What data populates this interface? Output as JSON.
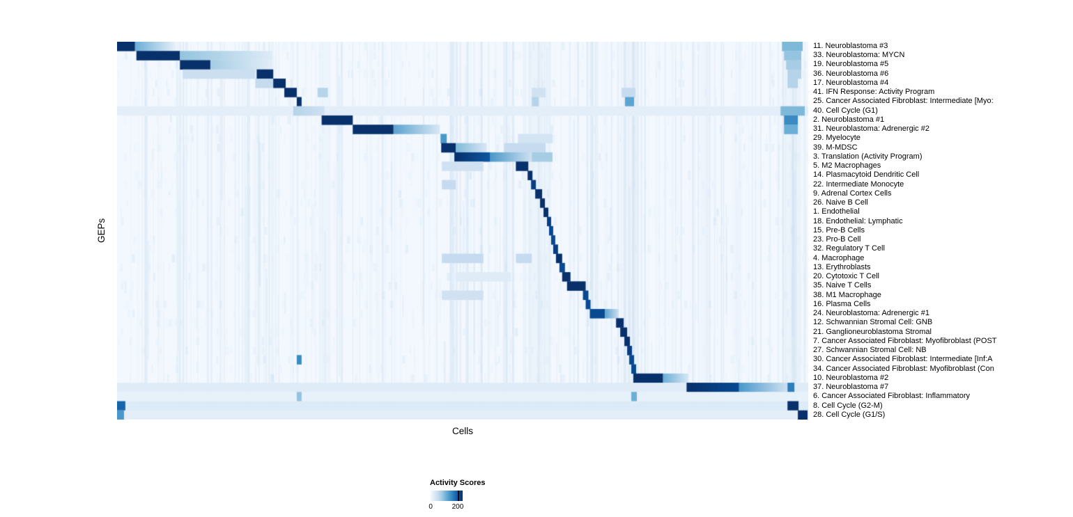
{
  "figure": {
    "background": "#ffffff"
  },
  "chart_data": {
    "type": "heatmap",
    "title": "",
    "xlabel": "Cells",
    "ylabel": "GEPs",
    "legend": {
      "title": "Activity Scores",
      "min_label": "0",
      "max_label": "200",
      "tick_frac": 0.85
    },
    "value_range": [
      0,
      200
    ],
    "colormap_name": "Blues",
    "colormap": [
      "#f7fbff",
      "#deebf7",
      "#c6dbef",
      "#9ecae1",
      "#6baed6",
      "#4292c6",
      "#2171b5",
      "#08519c",
      "#08306b"
    ],
    "highlight_columns": [
      [
        0.292,
        0.307,
        0.1
      ],
      [
        0.598,
        0.627,
        0.12
      ],
      [
        0.728,
        0.752,
        0.1
      ],
      [
        0.962,
        0.988,
        0.12
      ]
    ],
    "rows": [
      {
        "label": "11. Neuroblastoma #3",
        "blocks": [
          [
            0.0,
            0.026,
            1,
            1
          ],
          [
            0.026,
            0.085,
            0.5,
            0.08
          ],
          [
            0.962,
            0.992,
            0.45,
            0.45
          ]
        ]
      },
      {
        "label": "33. Neuroblastoma: MYCN",
        "blocks": [
          [
            0.028,
            0.091,
            1,
            1
          ],
          [
            0.091,
            0.225,
            0.4,
            0.12
          ],
          [
            0.965,
            0.99,
            0.4,
            0.4
          ]
        ]
      },
      {
        "label": "19. Neuroblastoma #5",
        "blocks": [
          [
            0.091,
            0.135,
            1,
            1
          ],
          [
            0.135,
            0.225,
            0.35,
            0.1
          ],
          [
            0.968,
            0.99,
            0.35,
            0.35
          ]
        ]
      },
      {
        "label": "36. Neuroblastoma #6",
        "blocks": [
          [
            0.095,
            0.2,
            0.22,
            0.22
          ],
          [
            0.202,
            0.226,
            1,
            1
          ],
          [
            0.97,
            0.99,
            0.3,
            0.3
          ]
        ]
      },
      {
        "label": "17. Neuroblastoma #4",
        "blocks": [
          [
            0.2,
            0.226,
            0.25,
            0.25
          ],
          [
            0.226,
            0.244,
            1,
            1
          ],
          [
            0.97,
            0.985,
            0.3,
            0.3
          ]
        ]
      },
      {
        "label": "41. IFN Response: Activity Program",
        "blocks": [
          [
            0.242,
            0.26,
            1,
            1
          ],
          [
            0.29,
            0.305,
            0.3,
            0.3
          ],
          [
            0.6,
            0.62,
            0.2,
            0.2
          ],
          [
            0.73,
            0.75,
            0.25,
            0.25
          ]
        ]
      },
      {
        "label": "25. Cancer Associated Fibroblast: Intermediate [Myo:",
        "blocks": [
          [
            0.26,
            0.267,
            1,
            1
          ],
          [
            0.6,
            0.61,
            0.3,
            0.3
          ],
          [
            0.735,
            0.748,
            0.55,
            0.55
          ]
        ]
      },
      {
        "label": "40. Cell Cycle (G1)",
        "blocks": [
          [
            0.0,
            1.0,
            0.1,
            0.1
          ],
          [
            0.255,
            0.3,
            0.3,
            0.2
          ],
          [
            0.96,
            0.995,
            0.45,
            0.45
          ]
        ]
      },
      {
        "label": "2. Neuroblastoma #1",
        "blocks": [
          [
            0.296,
            0.341,
            1,
            1
          ],
          [
            0.965,
            0.985,
            0.65,
            0.65
          ]
        ]
      },
      {
        "label": "31. Neuroblastoma: Adrenergic #2",
        "blocks": [
          [
            0.341,
            0.4,
            1,
            1
          ],
          [
            0.4,
            0.467,
            0.55,
            0.15
          ],
          [
            0.965,
            0.985,
            0.5,
            0.5
          ]
        ]
      },
      {
        "label": "29. Myelocyte",
        "blocks": [
          [
            0.468,
            0.477,
            0.6,
            0.6
          ],
          [
            0.58,
            0.63,
            0.18,
            0.18
          ]
        ]
      },
      {
        "label": "39. M-MDSC",
        "blocks": [
          [
            0.469,
            0.49,
            1,
            1
          ],
          [
            0.49,
            0.535,
            0.45,
            0.15
          ],
          [
            0.56,
            0.62,
            0.25,
            0.25
          ]
        ]
      },
      {
        "label": "3. Translation (Activity Program)",
        "blocks": [
          [
            0.488,
            0.54,
            1,
            0.85
          ],
          [
            0.54,
            0.6,
            0.6,
            0.2
          ],
          [
            0.6,
            0.63,
            0.35,
            0.35
          ]
        ]
      },
      {
        "label": "5. M2 Macrophages",
        "blocks": [
          [
            0.47,
            0.53,
            0.2,
            0.2
          ],
          [
            0.577,
            0.595,
            1,
            1
          ]
        ]
      },
      {
        "label": "14. Plasmacytoid Dendritic Cell",
        "blocks": [
          [
            0.594,
            0.601,
            1,
            1
          ]
        ]
      },
      {
        "label": "22. Intermediate Monocyte",
        "blocks": [
          [
            0.47,
            0.49,
            0.25,
            0.25
          ],
          [
            0.599,
            0.606,
            0.95,
            0.95
          ]
        ]
      },
      {
        "label": "9. Adrenal Cortex Cells",
        "blocks": [
          [
            0.605,
            0.615,
            1,
            1
          ]
        ]
      },
      {
        "label": "26. Naive B Cell",
        "blocks": [
          [
            0.612,
            0.619,
            1,
            1
          ]
        ]
      },
      {
        "label": "1. Endothelial",
        "blocks": [
          [
            0.617,
            0.624,
            1,
            1
          ]
        ]
      },
      {
        "label": "18. Endothelial: Lymphatic",
        "blocks": [
          [
            0.622,
            0.628,
            0.95,
            0.95
          ]
        ]
      },
      {
        "label": "15. Pre-B Cells",
        "blocks": [
          [
            0.625,
            0.631,
            0.9,
            0.9
          ]
        ]
      },
      {
        "label": "23. Pro-B Cell",
        "blocks": [
          [
            0.628,
            0.634,
            0.9,
            0.9
          ]
        ]
      },
      {
        "label": "32. Regulatory T Cell",
        "blocks": [
          [
            0.631,
            0.638,
            0.95,
            0.95
          ]
        ]
      },
      {
        "label": "4. Macrophage",
        "blocks": [
          [
            0.47,
            0.53,
            0.25,
            0.25
          ],
          [
            0.577,
            0.6,
            0.25,
            0.25
          ],
          [
            0.635,
            0.644,
            1,
            1
          ]
        ]
      },
      {
        "label": "13. Erythroblasts",
        "blocks": [
          [
            0.64,
            0.648,
            0.9,
            0.9
          ]
        ]
      },
      {
        "label": "20. Cytotoxic T Cell",
        "blocks": [
          [
            0.49,
            0.57,
            0.12,
            0.12
          ],
          [
            0.644,
            0.656,
            1,
            1
          ]
        ]
      },
      {
        "label": "35. Naive T Cells",
        "blocks": [
          [
            0.651,
            0.678,
            1,
            1
          ]
        ]
      },
      {
        "label": "38. M1 Macrophage",
        "blocks": [
          [
            0.47,
            0.53,
            0.2,
            0.2
          ],
          [
            0.674,
            0.682,
            0.9,
            0.9
          ]
        ]
      },
      {
        "label": "16. Plasma Cells",
        "blocks": [
          [
            0.678,
            0.685,
            0.9,
            0.9
          ]
        ]
      },
      {
        "label": "24. Neuroblastoma: Adrenergic #1",
        "blocks": [
          [
            0.684,
            0.706,
            0.9,
            0.9
          ],
          [
            0.706,
            0.726,
            0.55,
            0.2
          ]
        ]
      },
      {
        "label": "12. Schwannian Stromal Cell: GNB",
        "blocks": [
          [
            0.722,
            0.733,
            1,
            1
          ]
        ]
      },
      {
        "label": "21. Ganglioneuroblastoma Stromal",
        "blocks": [
          [
            0.728,
            0.738,
            1,
            1
          ]
        ]
      },
      {
        "label": "7. Cancer Associated Fibroblast: Myofibroblast (POST",
        "blocks": [
          [
            0.734,
            0.742,
            1,
            1
          ]
        ]
      },
      {
        "label": "27. Schwannian Stromal Cell: NB",
        "blocks": [
          [
            0.738,
            0.745,
            0.95,
            0.95
          ]
        ]
      },
      {
        "label": "30. Cancer Associated Fibroblast: Intermediate [Inf:A",
        "blocks": [
          [
            0.26,
            0.267,
            0.65,
            0.65
          ],
          [
            0.741,
            0.748,
            0.9,
            0.9
          ]
        ]
      },
      {
        "label": "34. Cancer Associated Fibroblast: Myofibroblast (Con",
        "blocks": [
          [
            0.744,
            0.751,
            0.9,
            0.9
          ]
        ]
      },
      {
        "label": "10. Neuroblastoma #2",
        "blocks": [
          [
            0.747,
            0.79,
            1,
            1
          ],
          [
            0.79,
            0.827,
            0.5,
            0.15
          ]
        ]
      },
      {
        "label": "37. Neuroblastoma #7",
        "blocks": [
          [
            0.0,
            1.0,
            0.12,
            0.12
          ],
          [
            0.824,
            0.9,
            1,
            0.9
          ],
          [
            0.9,
            0.97,
            0.6,
            0.2
          ],
          [
            0.97,
            0.98,
            0.7,
            0.7
          ]
        ]
      },
      {
        "label": "6. Cancer Associated Fibroblast: Inflammatory",
        "blocks": [
          [
            0.0,
            1.0,
            0.08,
            0.08
          ],
          [
            0.26,
            0.267,
            0.4,
            0.4
          ],
          [
            0.744,
            0.752,
            0.5,
            0.5
          ]
        ]
      },
      {
        "label": "8. Cell Cycle (G2-M)",
        "blocks": [
          [
            0.0,
            1.0,
            0.13,
            0.13
          ],
          [
            0.0,
            0.012,
            0.8,
            0.8
          ],
          [
            0.97,
            0.986,
            1,
            1
          ]
        ]
      },
      {
        "label": "28. Cell Cycle (G1/S)",
        "blocks": [
          [
            0.0,
            1.0,
            0.1,
            0.1
          ],
          [
            0.0,
            0.01,
            0.6,
            0.6
          ],
          [
            0.985,
            0.999,
            1,
            1
          ]
        ]
      }
    ]
  }
}
